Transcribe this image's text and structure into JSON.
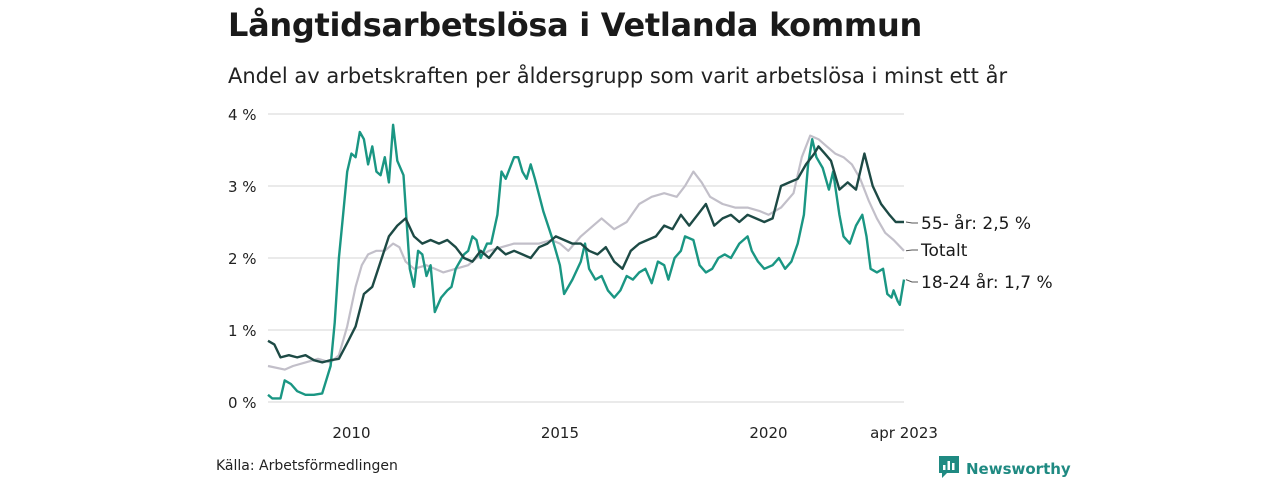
{
  "title": "Långtidsarbetslösa i Vetlanda kommun",
  "subtitle": "Andel av arbetskraften per åldersgrupp som varit arbetslösa i minst ett år",
  "source": "Källa: Arbetsförmedlingen",
  "brand": "Newsworthy",
  "colors": {
    "older": "#1d4a45",
    "total": "#c2bfc9",
    "young": "#1a9683",
    "grid": "#dddddd"
  },
  "chart_data": {
    "type": "line",
    "x_unit": "year (monthly data)",
    "xlim": [
      2008.0,
      2023.25
    ],
    "ylim": [
      0,
      4
    ],
    "y_ticks": [
      {
        "value": 0,
        "label": "0 %"
      },
      {
        "value": 1,
        "label": "1 %"
      },
      {
        "value": 2,
        "label": "2 %"
      },
      {
        "value": 3,
        "label": "3 %"
      },
      {
        "value": 4,
        "label": "4 %"
      }
    ],
    "x_ticks": [
      {
        "value": 2010,
        "label": "2010"
      },
      {
        "value": 2015,
        "label": "2015"
      },
      {
        "value": 2020,
        "label": "2020"
      },
      {
        "value": 2023.25,
        "label": "apr 2023"
      }
    ],
    "grid": "horizontal",
    "series": [
      {
        "key": "total",
        "name": "Totalt",
        "label": "Totalt",
        "points": [
          [
            2008.0,
            0.5
          ],
          [
            2008.4,
            0.45
          ],
          [
            2008.6,
            0.5
          ],
          [
            2008.9,
            0.55
          ],
          [
            2009.2,
            0.6
          ],
          [
            2009.5,
            0.55
          ],
          [
            2009.7,
            0.65
          ],
          [
            2009.9,
            1.05
          ],
          [
            2010.1,
            1.6
          ],
          [
            2010.25,
            1.9
          ],
          [
            2010.4,
            2.05
          ],
          [
            2010.6,
            2.1
          ],
          [
            2010.8,
            2.1
          ],
          [
            2011.0,
            2.2
          ],
          [
            2011.15,
            2.15
          ],
          [
            2011.3,
            1.95
          ],
          [
            2011.5,
            1.85
          ],
          [
            2011.8,
            1.9
          ],
          [
            2012.0,
            1.85
          ],
          [
            2012.2,
            1.8
          ],
          [
            2012.5,
            1.85
          ],
          [
            2012.8,
            1.9
          ],
          [
            2013.0,
            2.0
          ],
          [
            2013.3,
            2.1
          ],
          [
            2013.6,
            2.15
          ],
          [
            2013.9,
            2.2
          ],
          [
            2014.2,
            2.2
          ],
          [
            2014.5,
            2.2
          ],
          [
            2014.8,
            2.25
          ],
          [
            2015.0,
            2.2
          ],
          [
            2015.2,
            2.1
          ],
          [
            2015.5,
            2.3
          ],
          [
            2015.8,
            2.45
          ],
          [
            2016.0,
            2.55
          ],
          [
            2016.3,
            2.4
          ],
          [
            2016.6,
            2.5
          ],
          [
            2016.9,
            2.75
          ],
          [
            2017.2,
            2.85
          ],
          [
            2017.5,
            2.9
          ],
          [
            2017.8,
            2.85
          ],
          [
            2018.0,
            3.0
          ],
          [
            2018.2,
            3.2
          ],
          [
            2018.4,
            3.05
          ],
          [
            2018.6,
            2.85
          ],
          [
            2018.9,
            2.75
          ],
          [
            2019.2,
            2.7
          ],
          [
            2019.5,
            2.7
          ],
          [
            2019.8,
            2.65
          ],
          [
            2020.0,
            2.6
          ],
          [
            2020.3,
            2.7
          ],
          [
            2020.6,
            2.9
          ],
          [
            2020.8,
            3.4
          ],
          [
            2021.0,
            3.7
          ],
          [
            2021.2,
            3.65
          ],
          [
            2021.4,
            3.55
          ],
          [
            2021.6,
            3.45
          ],
          [
            2021.8,
            3.4
          ],
          [
            2022.0,
            3.3
          ],
          [
            2022.2,
            3.1
          ],
          [
            2022.4,
            2.8
          ],
          [
            2022.6,
            2.55
          ],
          [
            2022.8,
            2.35
          ],
          [
            2023.0,
            2.25
          ],
          [
            2023.25,
            2.1
          ]
        ]
      },
      {
        "key": "older",
        "name": "55- år",
        "label": "55- år: 2,5 %",
        "points": [
          [
            2008.0,
            0.85
          ],
          [
            2008.15,
            0.8
          ],
          [
            2008.3,
            0.62
          ],
          [
            2008.5,
            0.65
          ],
          [
            2008.7,
            0.62
          ],
          [
            2008.9,
            0.65
          ],
          [
            2009.1,
            0.58
          ],
          [
            2009.3,
            0.55
          ],
          [
            2009.5,
            0.58
          ],
          [
            2009.7,
            0.6
          ],
          [
            2009.9,
            0.82
          ],
          [
            2010.1,
            1.05
          ],
          [
            2010.3,
            1.5
          ],
          [
            2010.5,
            1.6
          ],
          [
            2010.7,
            1.95
          ],
          [
            2010.9,
            2.3
          ],
          [
            2011.1,
            2.45
          ],
          [
            2011.3,
            2.55
          ],
          [
            2011.5,
            2.3
          ],
          [
            2011.7,
            2.2
          ],
          [
            2011.9,
            2.25
          ],
          [
            2012.1,
            2.2
          ],
          [
            2012.3,
            2.25
          ],
          [
            2012.5,
            2.15
          ],
          [
            2012.7,
            2.0
          ],
          [
            2012.9,
            1.95
          ],
          [
            2013.1,
            2.1
          ],
          [
            2013.3,
            2.0
          ],
          [
            2013.5,
            2.15
          ],
          [
            2013.7,
            2.05
          ],
          [
            2013.9,
            2.1
          ],
          [
            2014.1,
            2.05
          ],
          [
            2014.3,
            2.0
          ],
          [
            2014.5,
            2.15
          ],
          [
            2014.7,
            2.2
          ],
          [
            2014.9,
            2.3
          ],
          [
            2015.1,
            2.25
          ],
          [
            2015.3,
            2.2
          ],
          [
            2015.5,
            2.2
          ],
          [
            2015.7,
            2.1
          ],
          [
            2015.9,
            2.05
          ],
          [
            2016.1,
            2.15
          ],
          [
            2016.3,
            1.95
          ],
          [
            2016.5,
            1.85
          ],
          [
            2016.7,
            2.1
          ],
          [
            2016.9,
            2.2
          ],
          [
            2017.1,
            2.25
          ],
          [
            2017.3,
            2.3
          ],
          [
            2017.5,
            2.45
          ],
          [
            2017.7,
            2.4
          ],
          [
            2017.9,
            2.6
          ],
          [
            2018.1,
            2.45
          ],
          [
            2018.3,
            2.6
          ],
          [
            2018.5,
            2.75
          ],
          [
            2018.7,
            2.45
          ],
          [
            2018.9,
            2.55
          ],
          [
            2019.1,
            2.6
          ],
          [
            2019.3,
            2.5
          ],
          [
            2019.5,
            2.6
          ],
          [
            2019.7,
            2.55
          ],
          [
            2019.9,
            2.5
          ],
          [
            2020.1,
            2.55
          ],
          [
            2020.3,
            3.0
          ],
          [
            2020.5,
            3.05
          ],
          [
            2020.7,
            3.1
          ],
          [
            2020.9,
            3.3
          ],
          [
            2021.1,
            3.45
          ],
          [
            2021.2,
            3.55
          ],
          [
            2021.35,
            3.45
          ],
          [
            2021.5,
            3.35
          ],
          [
            2021.7,
            2.95
          ],
          [
            2021.9,
            3.05
          ],
          [
            2022.1,
            2.95
          ],
          [
            2022.3,
            3.45
          ],
          [
            2022.5,
            3.0
          ],
          [
            2022.7,
            2.75
          ],
          [
            2022.9,
            2.6
          ],
          [
            2023.05,
            2.5
          ],
          [
            2023.25,
            2.5
          ]
        ]
      },
      {
        "key": "young",
        "name": "18-24 år",
        "label": "18-24 år: 1,7 %",
        "points": [
          [
            2008.0,
            0.1
          ],
          [
            2008.1,
            0.05
          ],
          [
            2008.3,
            0.05
          ],
          [
            2008.4,
            0.3
          ],
          [
            2008.55,
            0.25
          ],
          [
            2008.7,
            0.15
          ],
          [
            2008.9,
            0.1
          ],
          [
            2009.1,
            0.1
          ],
          [
            2009.3,
            0.12
          ],
          [
            2009.5,
            0.5
          ],
          [
            2009.6,
            1.1
          ],
          [
            2009.7,
            2.0
          ],
          [
            2009.8,
            2.6
          ],
          [
            2009.9,
            3.2
          ],
          [
            2010.0,
            3.45
          ],
          [
            2010.1,
            3.4
          ],
          [
            2010.2,
            3.75
          ],
          [
            2010.3,
            3.65
          ],
          [
            2010.4,
            3.3
          ],
          [
            2010.5,
            3.55
          ],
          [
            2010.6,
            3.2
          ],
          [
            2010.7,
            3.15
          ],
          [
            2010.8,
            3.4
          ],
          [
            2010.9,
            3.05
          ],
          [
            2011.0,
            3.85
          ],
          [
            2011.1,
            3.35
          ],
          [
            2011.25,
            3.15
          ],
          [
            2011.4,
            1.85
          ],
          [
            2011.5,
            1.6
          ],
          [
            2011.6,
            2.1
          ],
          [
            2011.7,
            2.05
          ],
          [
            2011.8,
            1.75
          ],
          [
            2011.9,
            1.9
          ],
          [
            2012.0,
            1.25
          ],
          [
            2012.15,
            1.45
          ],
          [
            2012.3,
            1.55
          ],
          [
            2012.4,
            1.6
          ],
          [
            2012.5,
            1.85
          ],
          [
            2012.6,
            1.95
          ],
          [
            2012.7,
            2.05
          ],
          [
            2012.8,
            2.1
          ],
          [
            2012.9,
            2.3
          ],
          [
            2013.0,
            2.25
          ],
          [
            2013.1,
            2.0
          ],
          [
            2013.25,
            2.2
          ],
          [
            2013.35,
            2.2
          ],
          [
            2013.5,
            2.6
          ],
          [
            2013.6,
            3.2
          ],
          [
            2013.7,
            3.1
          ],
          [
            2013.8,
            3.25
          ],
          [
            2013.9,
            3.4
          ],
          [
            2014.0,
            3.4
          ],
          [
            2014.1,
            3.2
          ],
          [
            2014.2,
            3.1
          ],
          [
            2014.3,
            3.3
          ],
          [
            2014.4,
            3.1
          ],
          [
            2014.6,
            2.65
          ],
          [
            2014.8,
            2.3
          ],
          [
            2014.9,
            2.1
          ],
          [
            2015.0,
            1.9
          ],
          [
            2015.1,
            1.5
          ],
          [
            2015.3,
            1.7
          ],
          [
            2015.5,
            1.95
          ],
          [
            2015.6,
            2.2
          ],
          [
            2015.7,
            1.85
          ],
          [
            2015.85,
            1.7
          ],
          [
            2016.0,
            1.75
          ],
          [
            2016.15,
            1.55
          ],
          [
            2016.3,
            1.45
          ],
          [
            2016.45,
            1.55
          ],
          [
            2016.6,
            1.75
          ],
          [
            2016.75,
            1.7
          ],
          [
            2016.9,
            1.8
          ],
          [
            2017.05,
            1.85
          ],
          [
            2017.2,
            1.65
          ],
          [
            2017.35,
            1.95
          ],
          [
            2017.5,
            1.9
          ],
          [
            2017.6,
            1.7
          ],
          [
            2017.75,
            2.0
          ],
          [
            2017.9,
            2.1
          ],
          [
            2018.0,
            2.3
          ],
          [
            2018.2,
            2.25
          ],
          [
            2018.35,
            1.9
          ],
          [
            2018.5,
            1.8
          ],
          [
            2018.65,
            1.85
          ],
          [
            2018.8,
            2.0
          ],
          [
            2018.95,
            2.05
          ],
          [
            2019.1,
            2.0
          ],
          [
            2019.3,
            2.2
          ],
          [
            2019.5,
            2.3
          ],
          [
            2019.6,
            2.1
          ],
          [
            2019.75,
            1.95
          ],
          [
            2019.9,
            1.85
          ],
          [
            2020.1,
            1.9
          ],
          [
            2020.25,
            2.0
          ],
          [
            2020.4,
            1.85
          ],
          [
            2020.55,
            1.95
          ],
          [
            2020.7,
            2.2
          ],
          [
            2020.85,
            2.6
          ],
          [
            2020.95,
            3.3
          ],
          [
            2021.05,
            3.65
          ],
          [
            2021.15,
            3.4
          ],
          [
            2021.3,
            3.25
          ],
          [
            2021.45,
            2.95
          ],
          [
            2021.55,
            3.2
          ],
          [
            2021.7,
            2.6
          ],
          [
            2021.8,
            2.3
          ],
          [
            2021.95,
            2.2
          ],
          [
            2022.1,
            2.45
          ],
          [
            2022.25,
            2.6
          ],
          [
            2022.35,
            2.3
          ],
          [
            2022.45,
            1.85
          ],
          [
            2022.6,
            1.8
          ],
          [
            2022.75,
            1.85
          ],
          [
            2022.85,
            1.5
          ],
          [
            2022.95,
            1.45
          ],
          [
            2023.0,
            1.55
          ],
          [
            2023.1,
            1.4
          ],
          [
            2023.15,
            1.35
          ],
          [
            2023.25,
            1.7
          ]
        ]
      }
    ]
  }
}
